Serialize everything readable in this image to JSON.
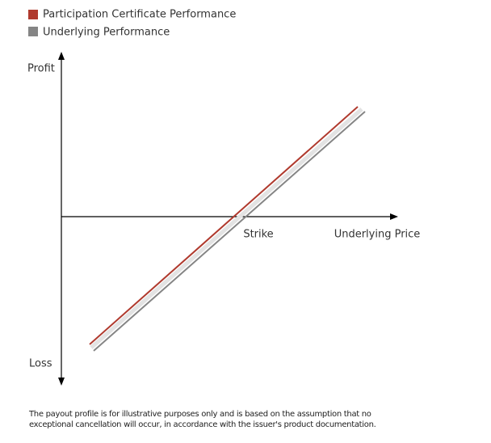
{
  "legend": {
    "items": [
      {
        "label": "Participation Certificate Performance"
      },
      {
        "label": "Underlying Performance"
      }
    ]
  },
  "axes": {
    "y_top": "Profit",
    "y_bottom": "Loss",
    "x_mark": "Strike",
    "x_end": "Underlying Price"
  },
  "footnote": {
    "lines": [
      "The payout profile is for illustrative purposes only and is based on the assumption that no",
      "exceptional cancellation will occur, in accordance with the issuer's product documentation."
    ]
  }
}
